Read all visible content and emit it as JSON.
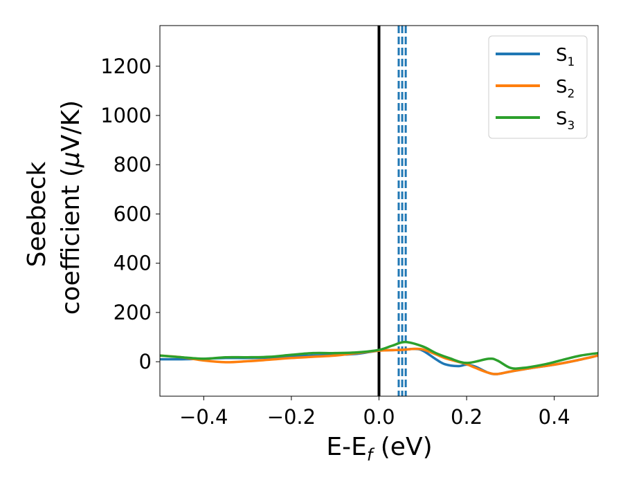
{
  "chart_data": {
    "type": "line",
    "xlabel": "E-E",
    "xlabel_sub": "f",
    "xlabel_unit": " (eV)",
    "ylabel_line1": "Seebeck",
    "ylabel_line2_pre": "coefficient  (",
    "ylabel_mu": "μ",
    "ylabel_line2_post": "V/K)",
    "xlim": [
      -0.5,
      0.5
    ],
    "ylim": [
      -140,
      1365
    ],
    "xticks": [
      -0.4,
      -0.2,
      0.0,
      0.2,
      0.4
    ],
    "xtick_labels": [
      "−0.4",
      "−0.2",
      "0.0",
      "0.2",
      "0.4"
    ],
    "yticks": [
      0,
      200,
      400,
      600,
      800,
      1000,
      1200
    ],
    "ytick_labels": [
      "0",
      "200",
      "400",
      "600",
      "800",
      "1000",
      "1200"
    ],
    "grid": false,
    "legend_position": "top-right",
    "vline_solid": {
      "x": 0.0,
      "color": "#000000"
    },
    "vlines_dashed": {
      "x": [
        0.045,
        0.053,
        0.061
      ],
      "color": "#1f77b4"
    },
    "series": [
      {
        "name": "S",
        "sub": "1",
        "color": "#1f77b4",
        "x": [
          -0.5,
          -0.45,
          -0.4,
          -0.35,
          -0.3,
          -0.25,
          -0.2,
          -0.15,
          -0.1,
          -0.05,
          0.0,
          0.05,
          0.08,
          0.1,
          0.13,
          0.15,
          0.18,
          0.2,
          0.22,
          0.25,
          0.27,
          0.3,
          0.35,
          0.4,
          0.45,
          0.5
        ],
        "values": [
          10,
          10,
          12,
          15,
          15,
          17,
          22,
          25,
          28,
          32,
          45,
          48,
          52,
          45,
          10,
          -10,
          -18,
          -12,
          -20,
          -45,
          -50,
          -40,
          -25,
          -12,
          5,
          25
        ]
      },
      {
        "name": "S",
        "sub": "2",
        "color": "#ff7f0e",
        "x": [
          -0.5,
          -0.45,
          -0.4,
          -0.35,
          -0.3,
          -0.25,
          -0.2,
          -0.15,
          -0.1,
          -0.05,
          0.0,
          0.05,
          0.08,
          0.1,
          0.13,
          0.15,
          0.18,
          0.2,
          0.22,
          0.25,
          0.27,
          0.3,
          0.35,
          0.4,
          0.45,
          0.5
        ],
        "values": [
          25,
          18,
          5,
          -2,
          2,
          8,
          15,
          20,
          25,
          35,
          45,
          48,
          52,
          50,
          30,
          15,
          0,
          -10,
          -25,
          -45,
          -50,
          -40,
          -25,
          -12,
          5,
          25
        ]
      },
      {
        "name": "S",
        "sub": "3",
        "color": "#2ca02c",
        "x": [
          -0.5,
          -0.45,
          -0.4,
          -0.35,
          -0.3,
          -0.25,
          -0.2,
          -0.15,
          -0.1,
          -0.05,
          0.0,
          0.03,
          0.06,
          0.1,
          0.13,
          0.16,
          0.2,
          0.25,
          0.27,
          0.3,
          0.33,
          0.38,
          0.42,
          0.46,
          0.5
        ],
        "values": [
          25,
          18,
          12,
          18,
          18,
          20,
          28,
          35,
          35,
          38,
          48,
          65,
          80,
          62,
          35,
          15,
          -5,
          12,
          5,
          -25,
          -25,
          -10,
          8,
          25,
          35
        ]
      }
    ]
  }
}
